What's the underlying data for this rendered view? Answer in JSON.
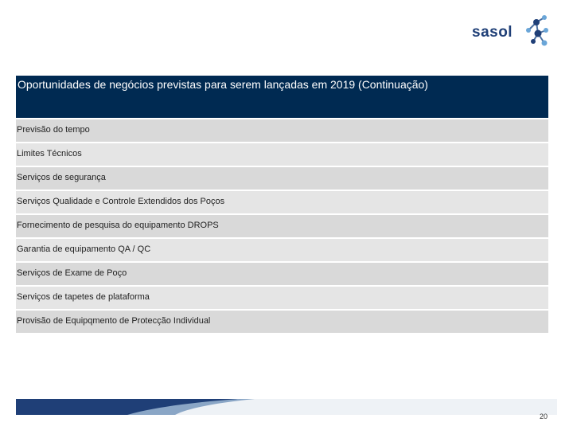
{
  "logo": {
    "text": "sasol"
  },
  "table": {
    "header": "Oportunidades de negócios previstas para serem lançadas em 2019 (Continuação)",
    "rows": [
      "Previsão do tempo",
      "Limites Técnicos",
      "Serviços de segurança",
      "Serviços Qualidade e Controle Extendidos dos Poços",
      "Fornecimento de pesquisa do equipamento DROPS",
      "Garantia de equipamento QA / QC",
      "Serviços de Exame de Poço",
      "Serviços de tapetes de plataforma",
      "Provisão de Equipqmento de Protecção Individual"
    ]
  },
  "footer": {
    "page_number": "20"
  },
  "colors": {
    "brand_blue": "#1f3f77",
    "header_navy": "#002a52",
    "row_gray": "#d9d9d9"
  }
}
